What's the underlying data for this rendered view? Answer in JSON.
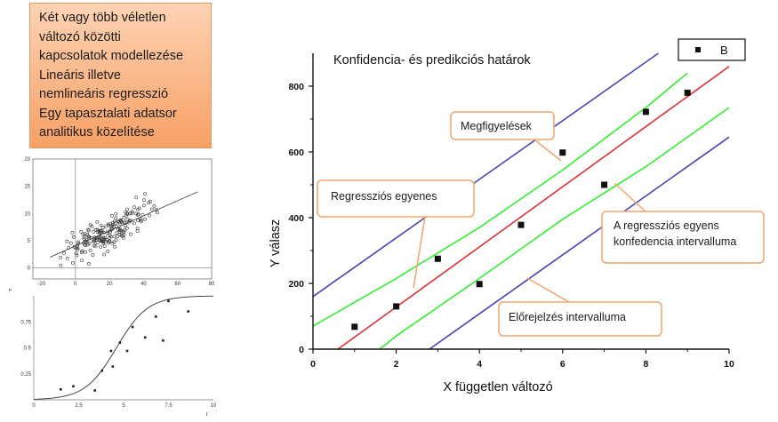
{
  "slide": {
    "text_lines": [
      "Két vagy több véletlen",
      "változó közötti",
      "kapcsolatok modellezése",
      "Lineáris illetve",
      "nemlineáris regresszió",
      "Egy tapasztalati adatsor",
      "analitikus közelítése"
    ]
  },
  "callouts": {
    "observations": "Megfigyelések",
    "regression_line": "Regressziós egyenes",
    "confidence_line1": "A regressziós egyens",
    "confidence_line2": "konfedencia intervalluma",
    "prediction": "Előrejelzés intervalluma"
  },
  "chart_data": [
    {
      "type": "scatter",
      "title": "Konfidencia- és predikciós határok",
      "xlabel": "X független változó",
      "ylabel": "Y válasz",
      "xlim": [
        0,
        10
      ],
      "ylim": [
        0,
        900
      ],
      "x_ticks": [
        0,
        2,
        4,
        6,
        8,
        10
      ],
      "y_ticks": [
        0,
        200,
        400,
        600,
        800
      ],
      "legend": {
        "label": "B",
        "position": "top-right"
      },
      "points": [
        {
          "x": 1,
          "y": 68
        },
        {
          "x": 2,
          "y": 130
        },
        {
          "x": 3,
          "y": 275
        },
        {
          "x": 4,
          "y": 198
        },
        {
          "x": 5,
          "y": 378
        },
        {
          "x": 6,
          "y": 598
        },
        {
          "x": 7,
          "y": 500
        },
        {
          "x": 8,
          "y": 722
        },
        {
          "x": 9,
          "y": 780
        }
      ],
      "regression": {
        "x": [
          0.6,
          10
        ],
        "y": [
          0,
          860
        ],
        "color": "#dd3333"
      },
      "confidence_upper": {
        "x": [
          0,
          2,
          4,
          6,
          8,
          9
        ],
        "y": [
          70,
          215,
          370,
          545,
          735,
          840
        ],
        "color": "#33ee33"
      },
      "confidence_lower": {
        "x": [
          1.6,
          2,
          4,
          6,
          8,
          10
        ],
        "y": [
          0,
          40,
          215,
          395,
          555,
          735
        ],
        "color": "#33ee33"
      },
      "prediction_upper": {
        "x": [
          0,
          8.3
        ],
        "y": [
          160,
          900
        ],
        "color": "#4646b4"
      },
      "prediction_lower": {
        "x": [
          2.8,
          10
        ],
        "y": [
          0,
          645
        ],
        "color": "#4646b4"
      }
    },
    {
      "type": "scatter",
      "x_ticks": [
        -20,
        0,
        20,
        40,
        60,
        80
      ],
      "y_ticks": [
        0,
        5,
        10,
        15,
        20
      ],
      "xlim": [
        -25,
        80
      ],
      "ylim": [
        -2,
        20
      ]
    },
    {
      "type": "scatter",
      "xlabel": "t",
      "ylabel": "p",
      "x_ticks": [
        0,
        2.5,
        5,
        7.5,
        10
      ],
      "y_ticks": [
        0.25,
        0.5,
        0.75
      ],
      "xlim": [
        0,
        10
      ],
      "ylim": [
        0,
        1
      ],
      "points": [
        {
          "x": 1.5,
          "y": 0.1
        },
        {
          "x": 2.2,
          "y": 0.13
        },
        {
          "x": 3.4,
          "y": 0.09
        },
        {
          "x": 3.8,
          "y": 0.28
        },
        {
          "x": 4.3,
          "y": 0.47
        },
        {
          "x": 4.4,
          "y": 0.32
        },
        {
          "x": 4.8,
          "y": 0.55
        },
        {
          "x": 5.2,
          "y": 0.47
        },
        {
          "x": 5.5,
          "y": 0.7
        },
        {
          "x": 6.2,
          "y": 0.6
        },
        {
          "x": 6.8,
          "y": 0.8
        },
        {
          "x": 7.2,
          "y": 0.57
        },
        {
          "x": 7.5,
          "y": 0.95
        },
        {
          "x": 8.6,
          "y": 0.85
        }
      ]
    }
  ]
}
